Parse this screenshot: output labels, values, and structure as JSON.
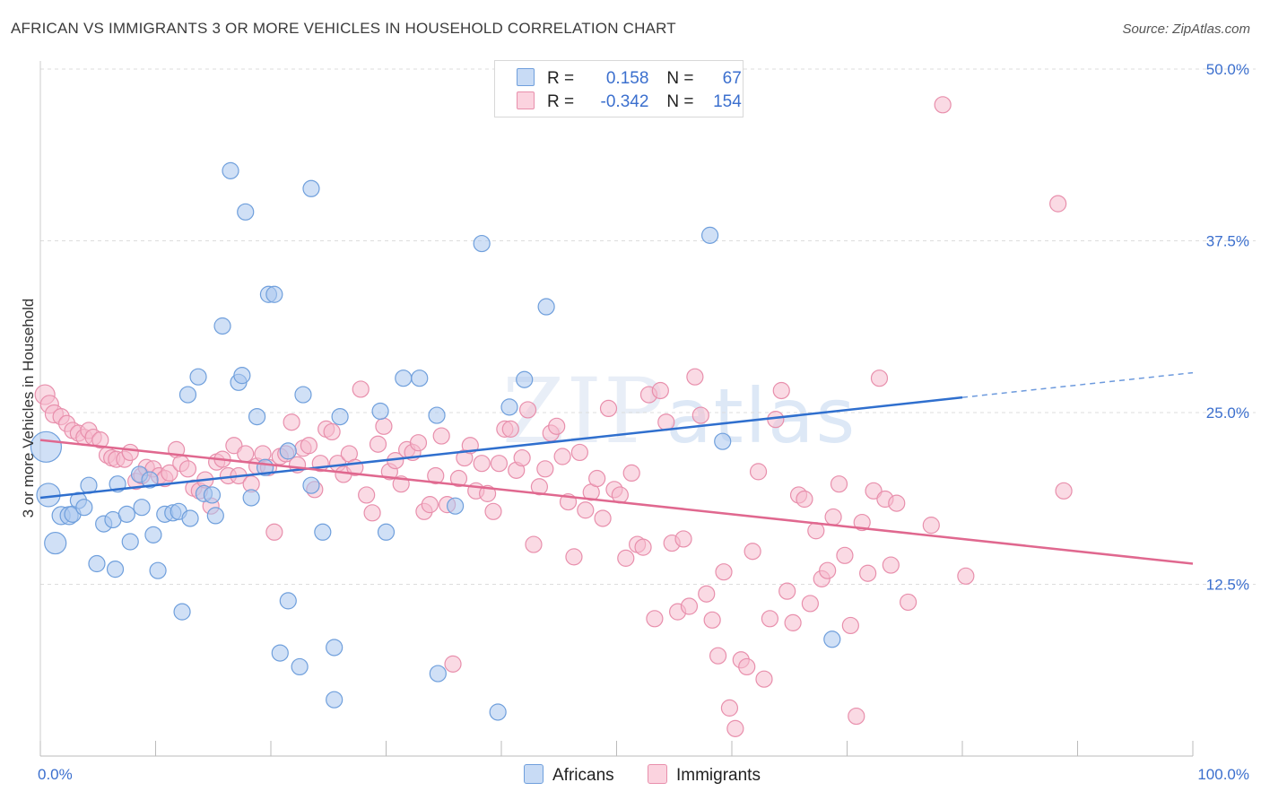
{
  "header": {
    "title": "AFRICAN VS IMMIGRANTS 3 OR MORE VEHICLES IN HOUSEHOLD CORRELATION CHART",
    "source": "Source: ZipAtlas.com"
  },
  "watermark": {
    "zip": "ZIP",
    "atlas": "atlas"
  },
  "legend": {
    "rows": [
      {
        "r_label": "R =",
        "r_value": "0.158",
        "n_label": "N =",
        "n_value": "67",
        "color": "#a9c6ee"
      },
      {
        "r_label": "R =",
        "r_value": "-0.342",
        "n_label": "N =",
        "n_value": "154",
        "color": "#f5b5c8"
      }
    ]
  },
  "bottom_legend": {
    "africans": "Africans",
    "immigrants": "Immigrants"
  },
  "colors": {
    "africans_fill": "#a9c6ee",
    "africans_stroke": "#6f9fdc",
    "africans_line": "#2f6fce",
    "immigrants_fill": "#f6bccd",
    "immigrants_stroke": "#e88fac",
    "immigrants_line": "#e0688f",
    "grid": "#dddddd",
    "tick_label": "#3b6fce"
  },
  "chart_data": {
    "type": "scatter",
    "title": "AFRICAN VS IMMIGRANTS 3 OR MORE VEHICLES IN HOUSEHOLD CORRELATION CHART",
    "xlabel": "",
    "ylabel": "3 or more Vehicles in Household",
    "xlim": [
      0,
      100
    ],
    "ylim": [
      0,
      50
    ],
    "x_tick_labels": [
      "0.0%",
      "100.0%"
    ],
    "y_ticks": [
      12.5,
      25.0,
      37.5,
      50.0
    ],
    "y_tick_labels": [
      "12.5%",
      "25.0%",
      "37.5%",
      "50.0%"
    ],
    "grid": "horizontal dashed",
    "legend_position": "top-center",
    "series": [
      {
        "name": "Africans",
        "trend": {
          "x0": 0,
          "y0": 18.8,
          "x1": 80,
          "y1": 26.1,
          "dashed_to_x": 100,
          "dashed_to_y": 27.9
        },
        "points": [
          [
            0.5,
            22.5,
            16
          ],
          [
            0.7,
            19.0,
            12
          ],
          [
            1.3,
            15.5,
            11
          ],
          [
            1.8,
            17.5,
            9
          ],
          [
            2.5,
            17.5,
            9
          ],
          [
            2.8,
            17.6,
            8
          ],
          [
            3.3,
            18.6,
            8
          ],
          [
            3.8,
            18.1,
            8
          ],
          [
            4.2,
            19.7,
            8
          ],
          [
            4.9,
            14.0,
            8
          ],
          [
            5.5,
            16.9,
            8
          ],
          [
            6.3,
            17.2,
            8
          ],
          [
            6.5,
            13.6,
            8
          ],
          [
            6.7,
            19.8,
            8
          ],
          [
            7.5,
            17.6,
            8
          ],
          [
            7.8,
            15.6,
            8
          ],
          [
            8.6,
            20.5,
            8
          ],
          [
            8.8,
            18.1,
            8
          ],
          [
            9.5,
            20.1,
            8
          ],
          [
            9.8,
            16.1,
            8
          ],
          [
            10.2,
            13.5,
            8
          ],
          [
            10.8,
            17.6,
            8
          ],
          [
            11.5,
            17.7,
            8
          ],
          [
            12.0,
            17.8,
            8
          ],
          [
            12.3,
            10.5,
            8
          ],
          [
            12.8,
            26.3,
            8
          ],
          [
            13.0,
            17.3,
            8
          ],
          [
            13.7,
            27.6,
            8
          ],
          [
            14.2,
            19.1,
            8
          ],
          [
            14.9,
            19.0,
            8
          ],
          [
            15.2,
            17.5,
            8
          ],
          [
            15.8,
            31.3,
            8
          ],
          [
            16.5,
            42.6,
            8
          ],
          [
            17.2,
            27.2,
            8
          ],
          [
            17.5,
            27.7,
            8
          ],
          [
            17.8,
            39.6,
            8
          ],
          [
            18.3,
            18.8,
            8
          ],
          [
            18.8,
            24.7,
            8
          ],
          [
            19.5,
            21.0,
            8
          ],
          [
            19.8,
            33.6,
            8
          ],
          [
            20.3,
            33.6,
            8
          ],
          [
            21.5,
            22.2,
            8
          ],
          [
            21.5,
            11.3,
            8
          ],
          [
            20.8,
            7.5,
            8
          ],
          [
            22.5,
            6.5,
            8
          ],
          [
            22.8,
            26.3,
            8
          ],
          [
            23.5,
            19.7,
            8
          ],
          [
            23.5,
            41.3,
            8
          ],
          [
            24.5,
            16.3,
            8
          ],
          [
            25.5,
            7.9,
            8
          ],
          [
            25.5,
            4.1,
            8
          ],
          [
            26.0,
            24.7,
            8
          ],
          [
            29.5,
            25.1,
            8
          ],
          [
            30.0,
            16.3,
            8
          ],
          [
            31.5,
            27.5,
            8
          ],
          [
            32.9,
            27.5,
            8
          ],
          [
            34.4,
            24.8,
            8
          ],
          [
            34.5,
            6.0,
            8
          ],
          [
            36.0,
            18.2,
            8
          ],
          [
            38.3,
            37.3,
            8
          ],
          [
            39.7,
            3.2,
            8
          ],
          [
            40.7,
            25.4,
            8
          ],
          [
            42.0,
            27.4,
            8
          ],
          [
            43.9,
            32.7,
            8
          ],
          [
            58.1,
            37.9,
            8
          ],
          [
            59.2,
            22.9,
            8
          ],
          [
            68.7,
            8.5,
            8
          ]
        ]
      },
      {
        "name": "Immigrants",
        "trend": {
          "x0": 0,
          "y0": 23.0,
          "x1": 100,
          "y1": 14.0
        },
        "points": [
          [
            0.4,
            26.3,
            10
          ],
          [
            0.8,
            25.6,
            9
          ],
          [
            1.2,
            24.9,
            9
          ],
          [
            1.8,
            24.7,
            8
          ],
          [
            2.3,
            24.2,
            8
          ],
          [
            2.8,
            23.7,
            8
          ],
          [
            3.3,
            23.5,
            8
          ],
          [
            3.8,
            23.2,
            8
          ],
          [
            4.2,
            23.7,
            8
          ],
          [
            4.6,
            23.2,
            8
          ],
          [
            5.2,
            23.0,
            8
          ],
          [
            5.8,
            21.9,
            8
          ],
          [
            6.2,
            21.7,
            8
          ],
          [
            6.6,
            21.6,
            8
          ],
          [
            7.3,
            21.6,
            8
          ],
          [
            7.8,
            22.1,
            8
          ],
          [
            8.3,
            20.0,
            8
          ],
          [
            8.8,
            20.4,
            8
          ],
          [
            9.2,
            21.0,
            8
          ],
          [
            9.8,
            20.9,
            8
          ],
          [
            10.3,
            20.4,
            8
          ],
          [
            10.8,
            20.2,
            8
          ],
          [
            11.2,
            20.6,
            8
          ],
          [
            11.8,
            22.3,
            8
          ],
          [
            12.2,
            21.3,
            8
          ],
          [
            12.8,
            20.9,
            8
          ],
          [
            13.3,
            19.5,
            8
          ],
          [
            13.8,
            19.3,
            8
          ],
          [
            14.3,
            20.1,
            8
          ],
          [
            14.8,
            18.2,
            8
          ],
          [
            15.3,
            21.4,
            8
          ],
          [
            15.8,
            21.6,
            8
          ],
          [
            16.3,
            20.4,
            8
          ],
          [
            16.8,
            22.6,
            8
          ],
          [
            17.2,
            20.4,
            8
          ],
          [
            17.8,
            22.0,
            8
          ],
          [
            18.3,
            19.8,
            8
          ],
          [
            18.8,
            21.1,
            8
          ],
          [
            19.3,
            22.0,
            8
          ],
          [
            19.8,
            21.0,
            8
          ],
          [
            20.3,
            16.3,
            8
          ],
          [
            20.8,
            21.8,
            8
          ],
          [
            21.3,
            22.0,
            8
          ],
          [
            21.8,
            24.3,
            8
          ],
          [
            22.3,
            21.2,
            8
          ],
          [
            22.8,
            22.4,
            8
          ],
          [
            23.3,
            22.6,
            8
          ],
          [
            23.8,
            19.4,
            8
          ],
          [
            24.3,
            21.3,
            8
          ],
          [
            24.8,
            23.8,
            8
          ],
          [
            25.3,
            23.6,
            8
          ],
          [
            25.8,
            21.3,
            8
          ],
          [
            26.3,
            20.5,
            8
          ],
          [
            26.8,
            22.0,
            8
          ],
          [
            27.3,
            21.0,
            8
          ],
          [
            27.8,
            26.7,
            8
          ],
          [
            28.3,
            19.0,
            8
          ],
          [
            28.8,
            17.7,
            8
          ],
          [
            29.3,
            22.7,
            8
          ],
          [
            29.8,
            24.0,
            8
          ],
          [
            30.3,
            20.7,
            8
          ],
          [
            30.8,
            21.5,
            8
          ],
          [
            31.3,
            19.8,
            8
          ],
          [
            31.8,
            22.3,
            8
          ],
          [
            32.3,
            22.1,
            8
          ],
          [
            32.8,
            22.8,
            8
          ],
          [
            33.3,
            17.8,
            8
          ],
          [
            33.8,
            18.3,
            8
          ],
          [
            34.3,
            20.4,
            8
          ],
          [
            34.8,
            23.3,
            8
          ],
          [
            35.3,
            18.3,
            8
          ],
          [
            35.8,
            6.7,
            8
          ],
          [
            36.3,
            20.2,
            8
          ],
          [
            36.8,
            21.7,
            8
          ],
          [
            37.3,
            22.6,
            8
          ],
          [
            37.8,
            19.3,
            8
          ],
          [
            38.3,
            21.3,
            8
          ],
          [
            38.8,
            19.1,
            8
          ],
          [
            39.3,
            17.8,
            8
          ],
          [
            39.8,
            21.3,
            8
          ],
          [
            40.3,
            23.8,
            8
          ],
          [
            40.8,
            23.8,
            8
          ],
          [
            41.3,
            20.8,
            8
          ],
          [
            41.8,
            21.7,
            8
          ],
          [
            42.3,
            25.2,
            8
          ],
          [
            42.8,
            15.4,
            8
          ],
          [
            43.3,
            19.6,
            8
          ],
          [
            43.8,
            20.9,
            8
          ],
          [
            44.3,
            23.5,
            8
          ],
          [
            44.8,
            24.0,
            8
          ],
          [
            45.3,
            21.8,
            8
          ],
          [
            45.8,
            18.5,
            8
          ],
          [
            46.3,
            14.5,
            8
          ],
          [
            46.8,
            22.1,
            8
          ],
          [
            47.3,
            17.9,
            8
          ],
          [
            47.8,
            19.2,
            8
          ],
          [
            48.3,
            20.2,
            8
          ],
          [
            48.8,
            17.3,
            8
          ],
          [
            49.3,
            25.3,
            8
          ],
          [
            49.8,
            19.4,
            8
          ],
          [
            50.3,
            19.0,
            8
          ],
          [
            50.8,
            14.4,
            8
          ],
          [
            51.3,
            20.6,
            8
          ],
          [
            51.8,
            15.4,
            8
          ],
          [
            52.3,
            15.2,
            8
          ],
          [
            52.8,
            26.3,
            8
          ],
          [
            53.3,
            10.0,
            8
          ],
          [
            53.8,
            26.6,
            8
          ],
          [
            54.3,
            24.3,
            8
          ],
          [
            54.8,
            15.5,
            8
          ],
          [
            55.3,
            10.5,
            8
          ],
          [
            55.8,
            15.8,
            8
          ],
          [
            56.3,
            10.9,
            8
          ],
          [
            56.8,
            27.6,
            8
          ],
          [
            57.3,
            24.8,
            8
          ],
          [
            57.8,
            11.8,
            8
          ],
          [
            58.3,
            9.9,
            8
          ],
          [
            58.8,
            7.3,
            8
          ],
          [
            59.3,
            13.4,
            8
          ],
          [
            59.8,
            3.5,
            8
          ],
          [
            60.3,
            2.0,
            8
          ],
          [
            60.8,
            7.0,
            8
          ],
          [
            61.3,
            6.5,
            8
          ],
          [
            61.8,
            14.9,
            8
          ],
          [
            62.3,
            20.7,
            8
          ],
          [
            62.8,
            5.6,
            8
          ],
          [
            63.3,
            10.0,
            8
          ],
          [
            63.8,
            24.5,
            8
          ],
          [
            64.3,
            26.6,
            8
          ],
          [
            64.8,
            12.0,
            8
          ],
          [
            65.3,
            9.7,
            8
          ],
          [
            65.8,
            19.0,
            8
          ],
          [
            66.3,
            18.7,
            8
          ],
          [
            66.8,
            11.1,
            8
          ],
          [
            67.3,
            16.4,
            8
          ],
          [
            67.8,
            12.9,
            8
          ],
          [
            68.3,
            13.5,
            8
          ],
          [
            68.8,
            17.4,
            8
          ],
          [
            69.3,
            19.8,
            8
          ],
          [
            69.8,
            14.6,
            8
          ],
          [
            70.3,
            9.5,
            8
          ],
          [
            70.8,
            2.9,
            8
          ],
          [
            71.3,
            17.0,
            8
          ],
          [
            71.8,
            13.3,
            8
          ],
          [
            72.3,
            19.3,
            8
          ],
          [
            72.8,
            27.5,
            8
          ],
          [
            73.3,
            18.7,
            8
          ],
          [
            73.8,
            13.9,
            8
          ],
          [
            74.3,
            18.4,
            8
          ],
          [
            75.3,
            11.2,
            8
          ],
          [
            77.3,
            16.8,
            8
          ],
          [
            78.3,
            47.4,
            8
          ],
          [
            80.3,
            13.1,
            8
          ],
          [
            88.3,
            40.2,
            8
          ],
          [
            88.8,
            19.3,
            8
          ]
        ]
      }
    ]
  }
}
